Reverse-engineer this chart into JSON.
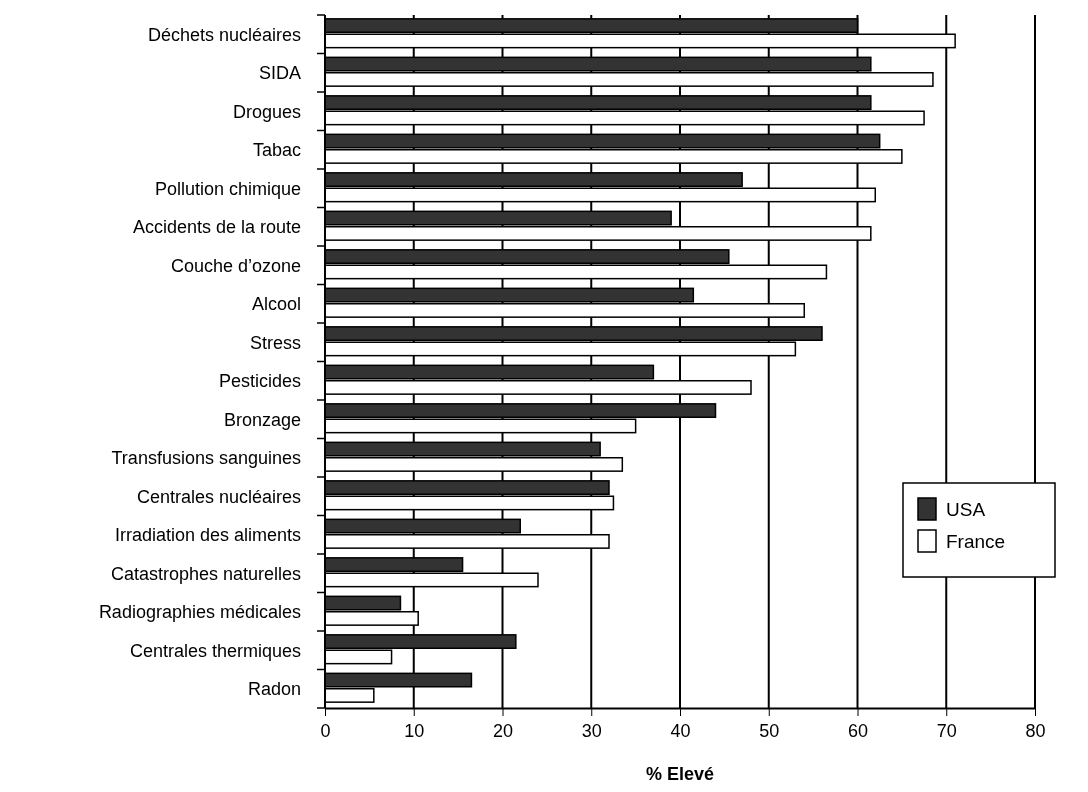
{
  "chart_data": {
    "type": "bar",
    "orientation": "horizontal",
    "xlabel": "% Elevé",
    "categories": [
      "Déchets nucléaires",
      "SIDA",
      "Drogues",
      "Tabac",
      "Pollution chimique",
      "Accidents de la route",
      "Couche d’ozone",
      "Alcool",
      "Stress",
      "Pesticides",
      "Bronzage",
      "Transfusions sanguines",
      "Centrales nucléaires",
      "Irradiation des aliments",
      "Catastrophes naturelles",
      "Radiographies médicales",
      "Centrales thermiques",
      "Radon"
    ],
    "series": [
      {
        "name": "USA",
        "color": "#333333",
        "values": [
          60,
          61.5,
          61.5,
          62.5,
          47,
          39,
          45.5,
          41.5,
          56,
          37,
          44,
          31,
          32,
          22,
          15.5,
          8.5,
          21.5,
          16.5
        ]
      },
      {
        "name": "France",
        "color": "#ffffff",
        "values": [
          71,
          68.5,
          67.5,
          65,
          62,
          61.5,
          56.5,
          54,
          53,
          48,
          35,
          33.5,
          32.5,
          32,
          24,
          10.5,
          7.5,
          5.5
        ]
      }
    ],
    "xlim": [
      0,
      80
    ],
    "xticks": [
      0,
      10,
      20,
      30,
      40,
      50,
      60,
      70,
      80
    ],
    "grid": "x",
    "legend": "right"
  }
}
